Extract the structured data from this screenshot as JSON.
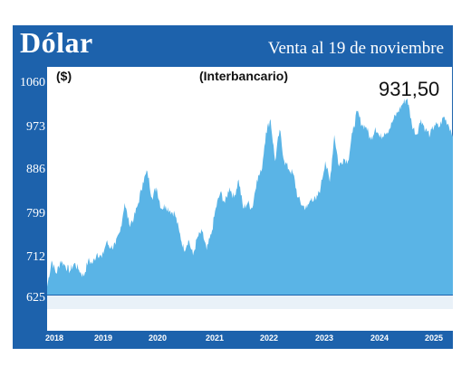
{
  "header": {
    "title": "Dólar",
    "subtitle": "Venta al 19 de noviembre"
  },
  "chart_data": {
    "type": "area",
    "title": "(Interbancario)",
    "ylabel": "($)",
    "ylim": [
      625,
      1060
    ],
    "yticks": [
      "1060",
      "973",
      "886",
      "799",
      "712",
      "625"
    ],
    "last_value": "931,50",
    "years": [
      "2018",
      "2019",
      "2020",
      "2021",
      "2022",
      "2023",
      "2024",
      "2025"
    ],
    "x_range": [
      "2018-06",
      "2025-11"
    ],
    "grid": false,
    "color": "#5ab4e6",
    "header_color": "#1d62ac",
    "x": [
      "2018-06",
      "2018-07",
      "2018-08",
      "2018-09",
      "2018-10",
      "2018-11",
      "2018-12",
      "2019-01",
      "2019-02",
      "2019-03",
      "2019-04",
      "2019-05",
      "2019-06",
      "2019-07",
      "2019-08",
      "2019-09",
      "2019-10",
      "2019-11",
      "2019-12",
      "2020-01",
      "2020-02",
      "2020-03",
      "2020-04",
      "2020-05",
      "2020-06",
      "2020-07",
      "2020-08",
      "2020-09",
      "2020-10",
      "2020-11",
      "2020-12",
      "2021-01",
      "2021-02",
      "2021-03",
      "2021-04",
      "2021-05",
      "2021-06",
      "2021-07",
      "2021-08",
      "2021-09",
      "2021-10",
      "2021-11",
      "2021-12",
      "2022-01",
      "2022-02",
      "2022-03",
      "2022-04",
      "2022-05",
      "2022-06",
      "2022-07",
      "2022-08",
      "2022-09",
      "2022-10",
      "2022-11",
      "2022-12",
      "2023-01",
      "2023-02",
      "2023-03",
      "2023-04",
      "2023-05",
      "2023-06",
      "2023-07",
      "2023-08",
      "2023-09",
      "2023-10",
      "2023-11",
      "2023-12",
      "2024-01",
      "2024-02",
      "2024-03",
      "2024-04",
      "2024-05",
      "2024-06",
      "2024-07",
      "2024-08",
      "2024-09",
      "2024-10",
      "2024-11",
      "2024-12",
      "2025-01",
      "2025-02",
      "2025-03",
      "2025-04",
      "2025-05",
      "2025-06",
      "2025-07",
      "2025-08",
      "2025-09",
      "2025-10",
      "2025-11"
    ],
    "values": [
      640,
      690,
      665,
      690,
      680,
      670,
      685,
      672,
      660,
      690,
      685,
      705,
      695,
      725,
      715,
      720,
      745,
      800,
      760,
      770,
      800,
      840,
      860,
      810,
      830,
      790,
      795,
      785,
      780,
      745,
      710,
      730,
      700,
      735,
      745,
      710,
      740,
      790,
      820,
      800,
      830,
      810,
      845,
      790,
      800,
      790,
      845,
      860,
      935,
      960,
      880,
      940,
      880,
      865,
      855,
      810,
      795,
      790,
      810,
      805,
      830,
      880,
      840,
      930,
      870,
      885,
      880,
      935,
      975,
      950,
      945,
      920,
      945,
      925,
      935,
      940,
      960,
      975,
      990,
      1000,
      950,
      930,
      960,
      940,
      930,
      950,
      945,
      965,
      950,
      931.5
    ]
  }
}
